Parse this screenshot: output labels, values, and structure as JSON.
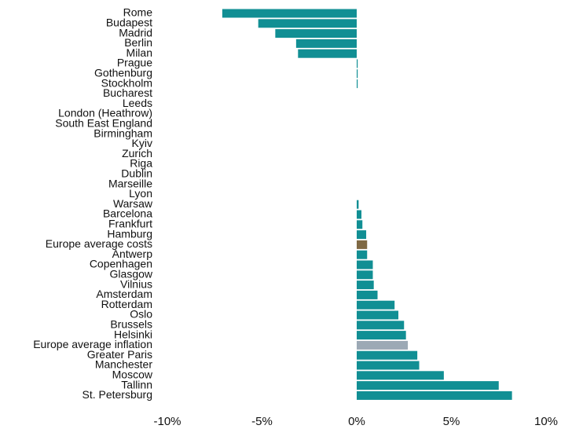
{
  "chart_data": {
    "type": "bar",
    "orientation": "horizontal",
    "categories": [
      "Rome",
      "Budapest",
      "Madrid",
      "Berlin",
      "Milan",
      "Prague",
      "Gothenburg",
      "Stockholm",
      "Bucharest",
      "Leeds",
      "London (Heathrow)",
      "South East England",
      "Birmingham",
      "Kyiv",
      "Zurich",
      "Riga",
      "Dublin",
      "Marseille",
      "Lyon",
      "Warsaw",
      "Barcelona",
      "Frankfurt",
      "Hamburg",
      "Europe average costs",
      "Antwerp",
      "Copenhagen",
      "Glasgow",
      "Vilnius",
      "Amsterdam",
      "Rotterdam",
      "Oslo",
      "Brussels",
      "Helsinki",
      "Europe average inflation",
      "Greater Paris",
      "Manchester",
      "Moscow",
      "Tallinn",
      "St. Petersburg"
    ],
    "values": [
      -7.1,
      -5.2,
      -4.3,
      -3.2,
      -3.1,
      0.05,
      0.03,
      0.03,
      0,
      0,
      0,
      0,
      0,
      0,
      0,
      0,
      0,
      0,
      0,
      0.1,
      0.25,
      0.3,
      0.5,
      0.55,
      0.55,
      0.85,
      0.85,
      0.9,
      1.1,
      2.0,
      2.2,
      2.5,
      2.6,
      2.7,
      3.2,
      3.3,
      4.6,
      7.5,
      8.2
    ],
    "colors": [
      "#118f94",
      "#118f94",
      "#118f94",
      "#118f94",
      "#118f94",
      "#118f94",
      "#118f94",
      "#118f94",
      "#118f94",
      "#118f94",
      "#118f94",
      "#118f94",
      "#118f94",
      "#118f94",
      "#118f94",
      "#118f94",
      "#118f94",
      "#118f94",
      "#118f94",
      "#118f94",
      "#118f94",
      "#118f94",
      "#118f94",
      "#7f6944",
      "#118f94",
      "#118f94",
      "#118f94",
      "#118f94",
      "#118f94",
      "#118f94",
      "#118f94",
      "#118f94",
      "#118f94",
      "#9ca9b5",
      "#118f94",
      "#118f94",
      "#118f94",
      "#118f94",
      "#118f94"
    ],
    "xlim": [
      -10,
      10
    ],
    "xticks": [
      -10,
      -5,
      0,
      5,
      10
    ],
    "xtick_labels": [
      "-10%",
      "-5%",
      "0%",
      "5%",
      "10%"
    ],
    "grid": false,
    "legend": "none",
    "title": "",
    "xlabel": "",
    "ylabel": ""
  }
}
